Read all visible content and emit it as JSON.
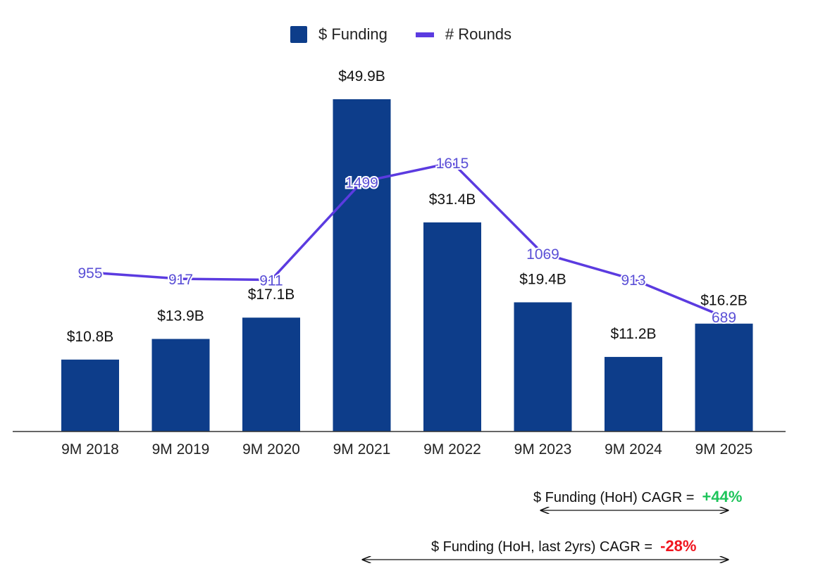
{
  "chart_data": {
    "type": "bar",
    "categories": [
      "9M 2018",
      "9M 2019",
      "9M 2020",
      "9M 2021",
      "9M 2022",
      "9M 2023",
      "9M 2024",
      "9M 2025"
    ],
    "series": [
      {
        "name": "$ Funding",
        "type": "bar",
        "values": [
          10.8,
          13.9,
          17.1,
          49.9,
          31.4,
          19.4,
          11.2,
          16.2
        ],
        "labels": [
          "$10.8B",
          "$13.9B",
          "$17.1B",
          "$49.9B",
          "$31.4B",
          "$19.4B",
          "$11.2B",
          "$16.2B"
        ],
        "color": "#0d3d8a"
      },
      {
        "name": "# Rounds",
        "type": "line",
        "values": [
          955,
          917,
          911,
          1499,
          1615,
          1069,
          913,
          689
        ],
        "color": "#5b3be0"
      }
    ],
    "ylim_bar": [
      0,
      50
    ],
    "ylim_line": [
      0,
      1615
    ],
    "legend": "top-center",
    "grid": false
  },
  "legend": {
    "funding": "$ Funding",
    "rounds": "# Rounds"
  },
  "annotations": {
    "cagr_hoh_label": "$ Funding (HoH) CAGR =",
    "cagr_hoh_value": "+44%",
    "cagr_2yr_label": "$ Funding (HoH, last 2yrs) CAGR =",
    "cagr_2yr_value": "-28%"
  }
}
